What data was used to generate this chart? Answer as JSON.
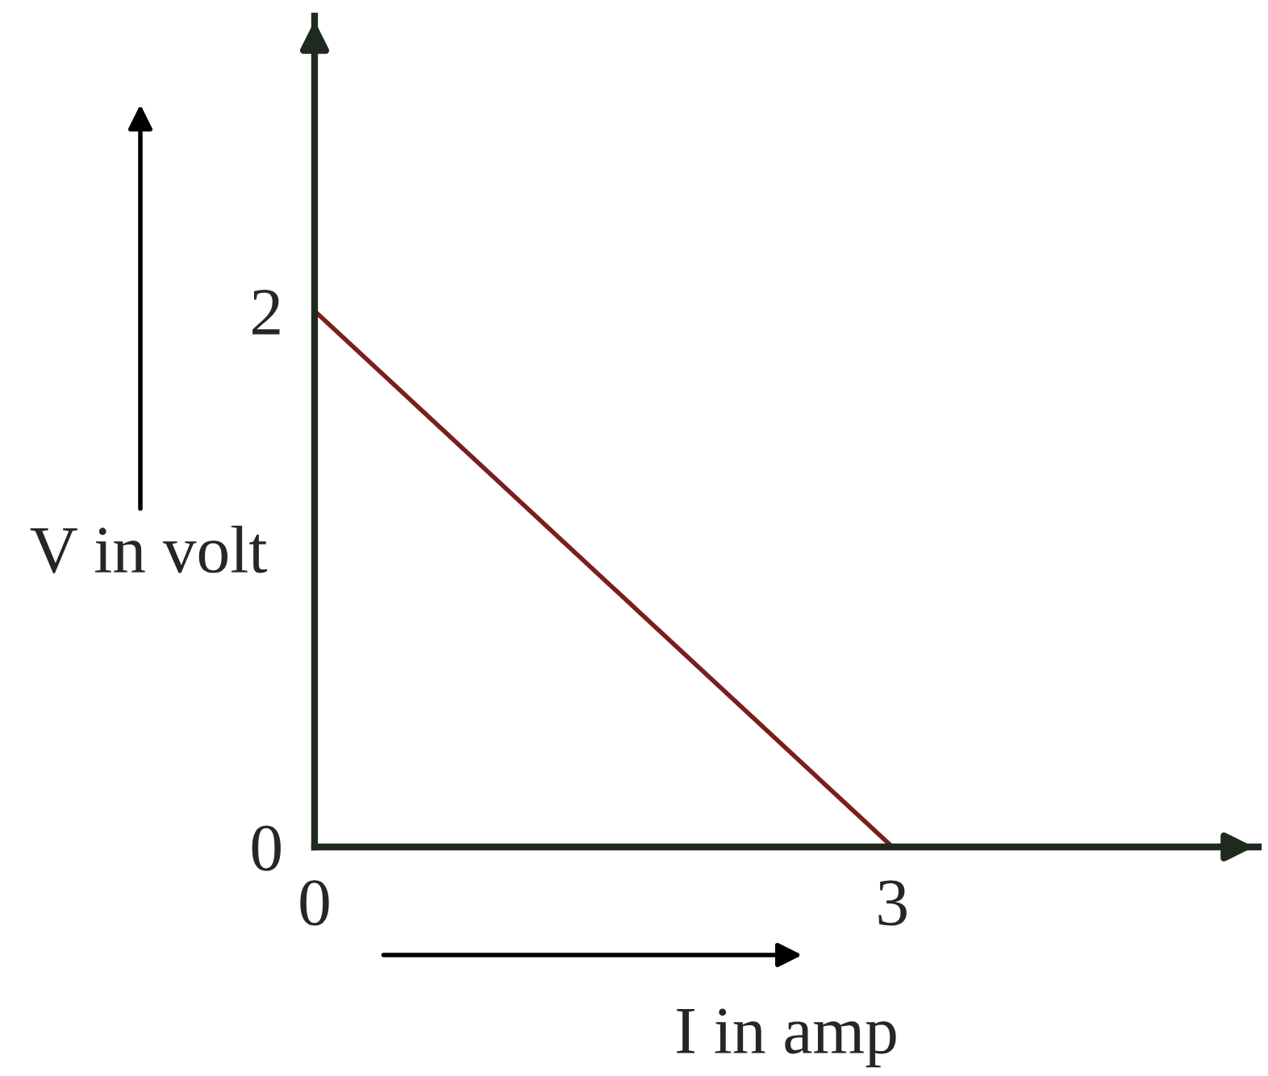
{
  "chart_data": {
    "type": "line",
    "x": [
      0,
      3
    ],
    "series": [
      {
        "color": "#7a1e1e",
        "values": [
          2,
          0
        ]
      }
    ],
    "xlabel": "I in amp",
    "ylabel": "V in volt",
    "xlim": [
      0,
      4.9
    ],
    "ylim": [
      0,
      3.1
    ],
    "xticks": [
      0,
      3
    ],
    "yticks": [
      0,
      2
    ],
    "grid": false,
    "legend": false,
    "marker": "none",
    "line_style": "solid"
  }
}
